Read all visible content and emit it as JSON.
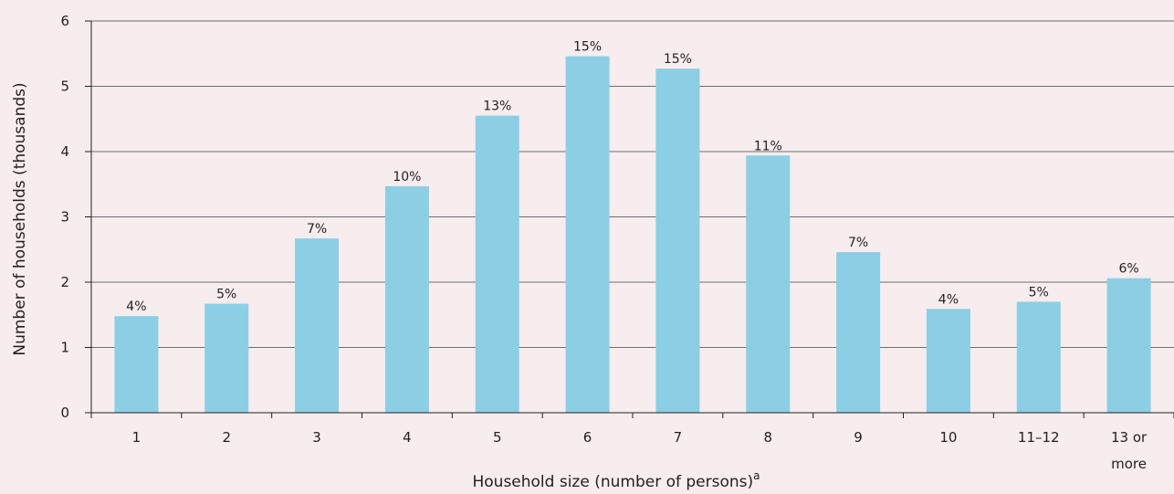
{
  "chart_data": {
    "type": "bar",
    "categories": [
      "1",
      "2",
      "3",
      "4",
      "5",
      "6",
      "7",
      "8",
      "9",
      "10",
      "11–12",
      "13 or more"
    ],
    "values": [
      1.48,
      1.67,
      2.67,
      3.47,
      4.55,
      5.46,
      5.27,
      3.94,
      2.46,
      1.59,
      1.7,
      2.06
    ],
    "data_labels": [
      "4%",
      "5%",
      "7%",
      "10%",
      "13%",
      "15%",
      "15%",
      "11%",
      "7%",
      "4%",
      "5%",
      "6%"
    ],
    "xlabel": "Household size (number of persons)",
    "xlabel_superscript": "a",
    "ylabel": "Number of households (thousands)",
    "ylim": [
      0,
      6
    ],
    "yticks": [
      0,
      1,
      2,
      3,
      4,
      5,
      6
    ],
    "grid": true,
    "colors": {
      "bar": "#8ccfe4",
      "grid": "#6d6e71",
      "axis": "#231f20",
      "background": "#f7ecee"
    }
  }
}
